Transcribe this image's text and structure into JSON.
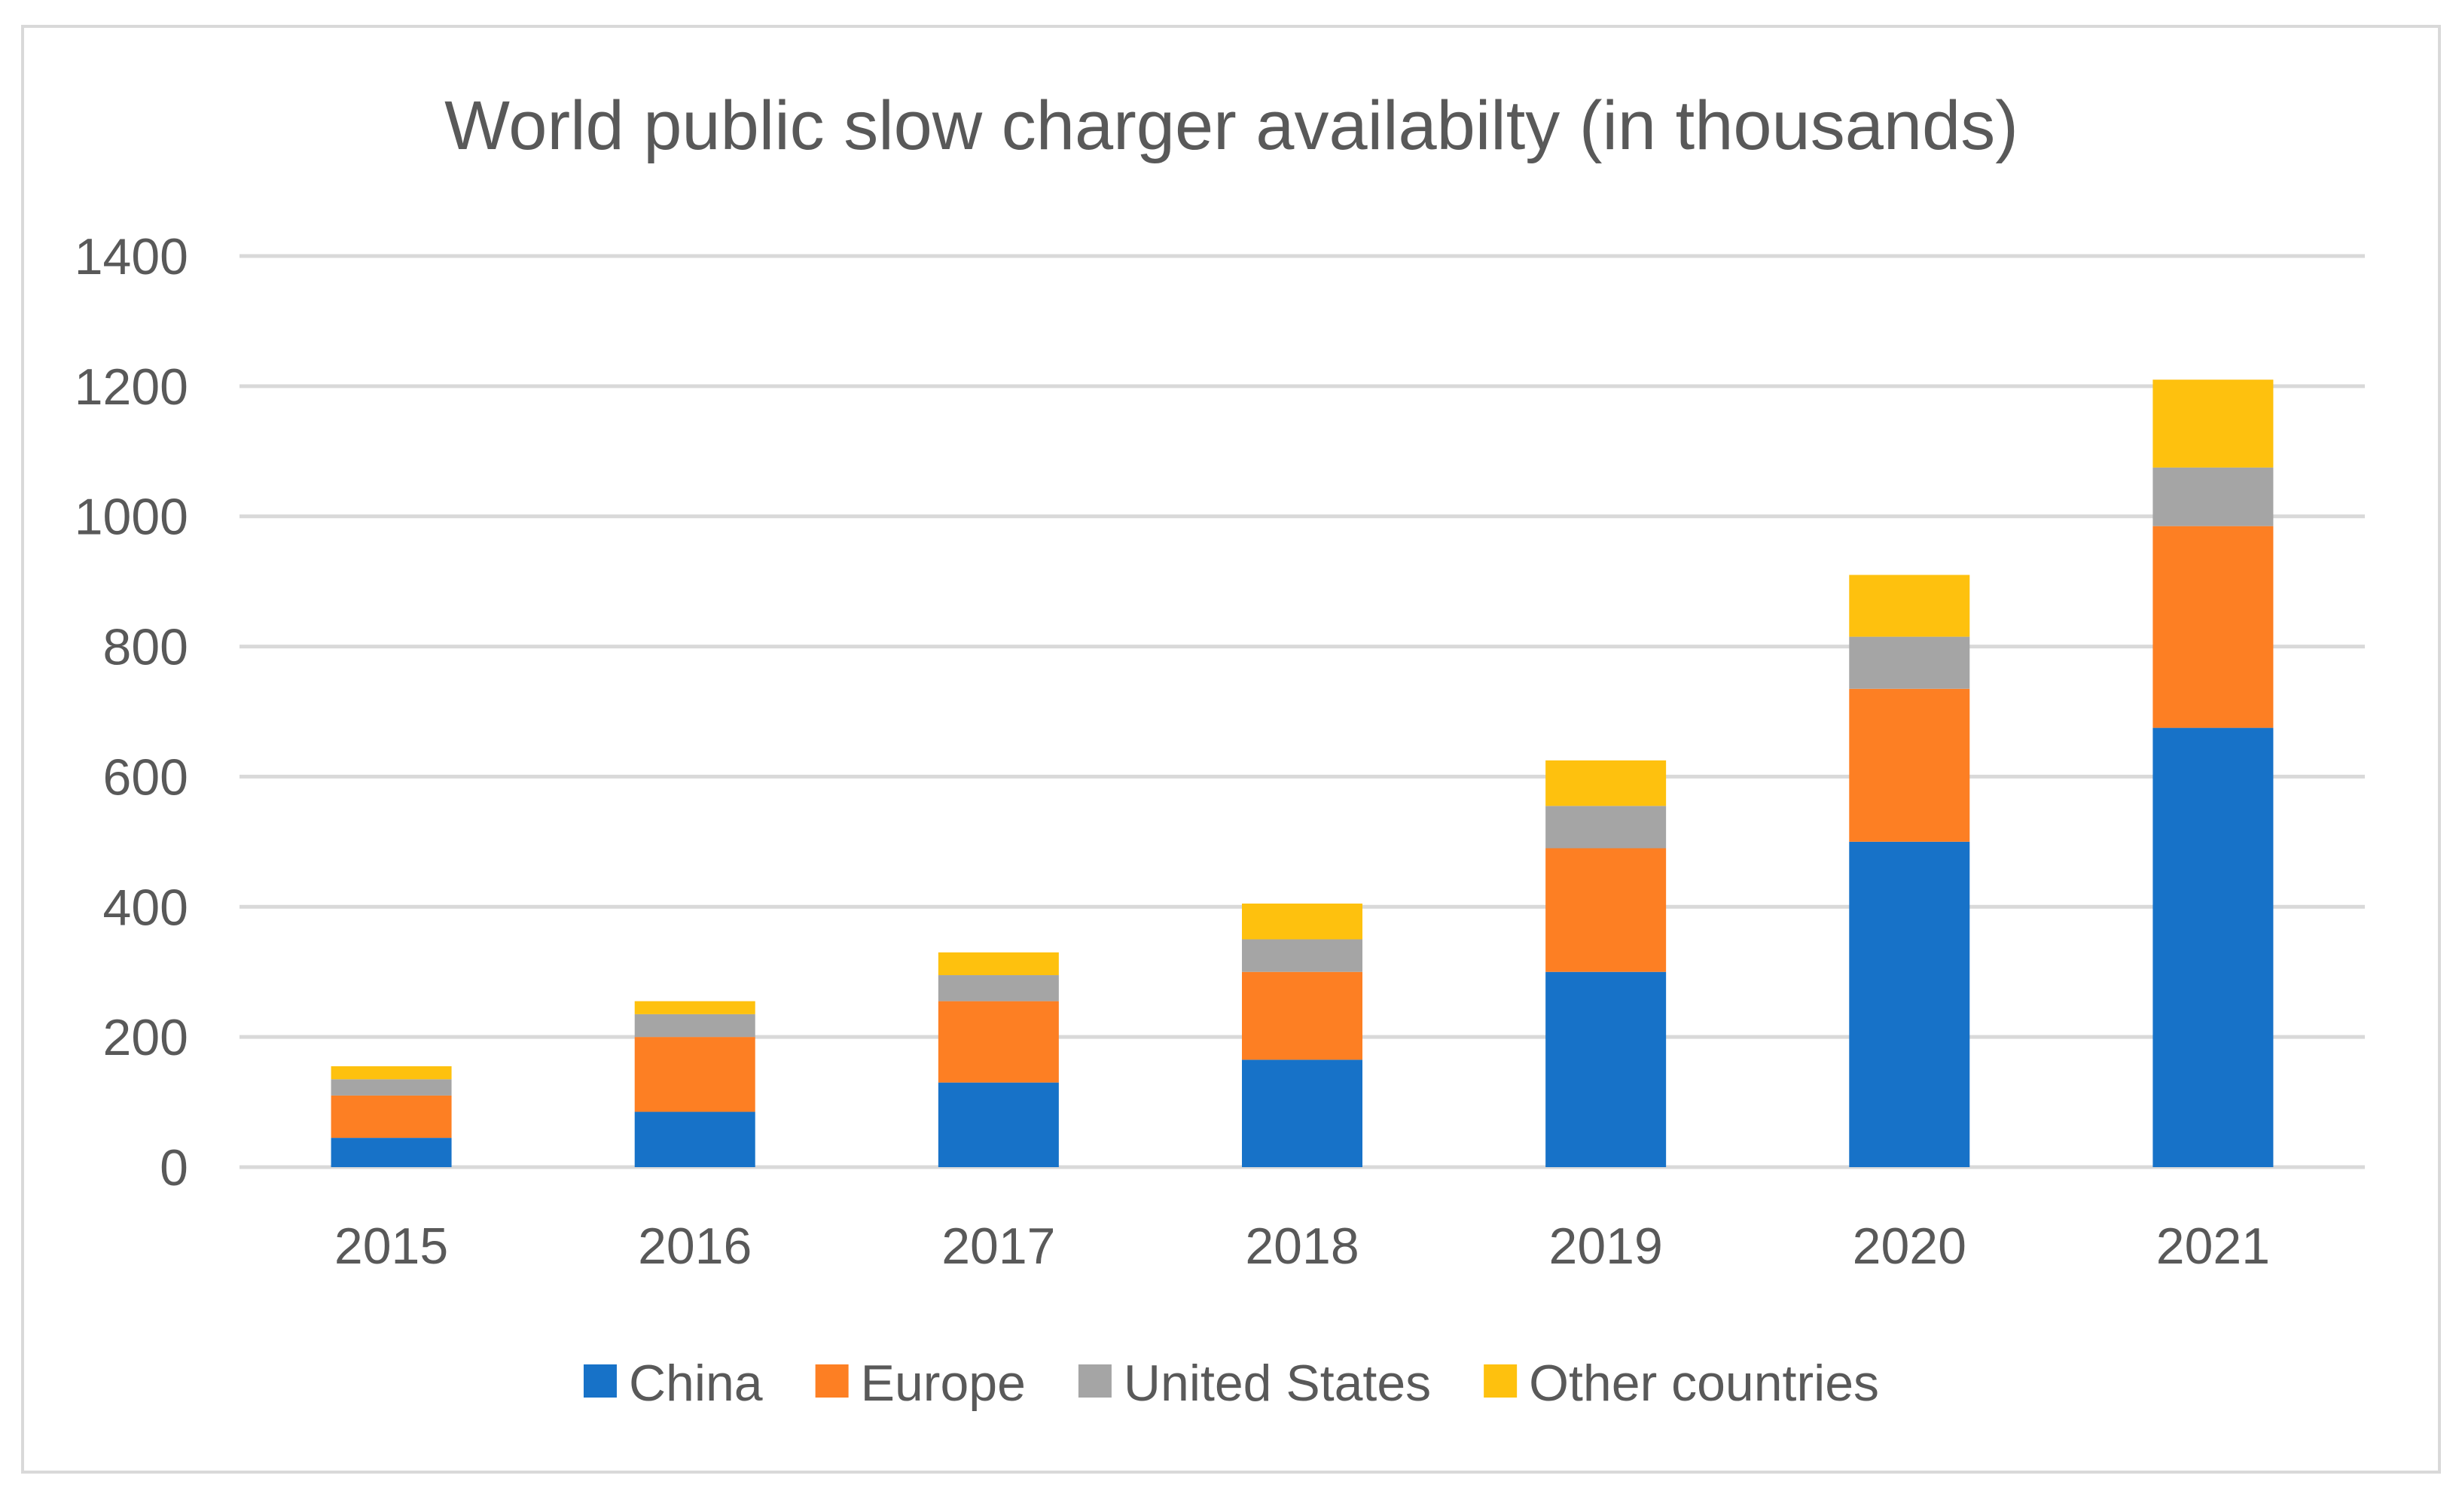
{
  "chart_data": {
    "type": "bar",
    "stacked": true,
    "title": "World public slow charger availabilty (in thousands)",
    "xlabel": "",
    "ylabel": "",
    "categories": [
      "2015",
      "2016",
      "2017",
      "2018",
      "2019",
      "2020",
      "2021"
    ],
    "ylim": [
      0,
      1400
    ],
    "yticks": [
      "0",
      "200",
      "400",
      "600",
      "800",
      "1000",
      "1200",
      "1400"
    ],
    "grid": true,
    "legend_position": "bottom",
    "series": [
      {
        "name": "China",
        "color": "#1772c8",
        "values": [
          45,
          85,
          130,
          165,
          300,
          500,
          675
        ]
      },
      {
        "name": "Europe",
        "color": "#fd7f23",
        "values": [
          65,
          115,
          125,
          135,
          190,
          235,
          310
        ]
      },
      {
        "name": "United States",
        "color": "#a5a5a5",
        "values": [
          25,
          35,
          40,
          50,
          65,
          80,
          90
        ]
      },
      {
        "name": "Other countries",
        "color": "#fec10e",
        "values": [
          20,
          20,
          35,
          55,
          70,
          95,
          135
        ]
      }
    ],
    "colors": {
      "grid": "#d9d9d9",
      "text": "#595959",
      "border": "#d9d9d9"
    }
  }
}
